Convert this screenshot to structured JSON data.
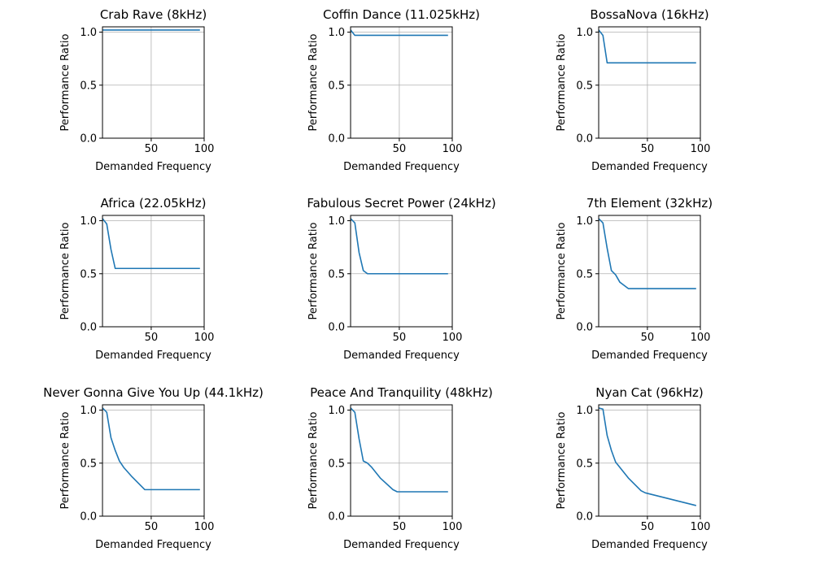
{
  "figure": {
    "line_color": "#1f77b4",
    "grid_color": "#b0b0b0",
    "axis_color": "#000000",
    "background": "#ffffff"
  },
  "chart_data": [
    {
      "type": "line",
      "title": "Crab Rave (8kHz)",
      "xlabel": "Demanded Frequency",
      "ylabel": "Performance Ratio",
      "xlim": [
        4,
        100
      ],
      "ylim": [
        0,
        1.05
      ],
      "xticks": [
        50,
        100
      ],
      "yticks": [
        0.0,
        0.5,
        1.0
      ],
      "grid": true,
      "x": [
        4,
        8,
        12,
        16,
        20,
        24,
        32,
        44,
        48,
        96
      ],
      "y": [
        1.02,
        1.02,
        1.02,
        1.02,
        1.02,
        1.02,
        1.02,
        1.02,
        1.02,
        1.02
      ]
    },
    {
      "type": "line",
      "title": "Coffin Dance (11.025kHz)",
      "xlabel": "Demanded Frequency",
      "ylabel": "Performance Ratio",
      "xlim": [
        4,
        100
      ],
      "ylim": [
        0,
        1.05
      ],
      "xticks": [
        50,
        100
      ],
      "yticks": [
        0.0,
        0.5,
        1.0
      ],
      "grid": true,
      "x": [
        4,
        8,
        12,
        16,
        20,
        24,
        32,
        44,
        48,
        96
      ],
      "y": [
        1.02,
        0.97,
        0.97,
        0.97,
        0.97,
        0.97,
        0.97,
        0.97,
        0.97,
        0.97
      ]
    },
    {
      "type": "line",
      "title": "BossaNova (16kHz)",
      "xlabel": "Demanded Frequency",
      "ylabel": "Performance Ratio",
      "xlim": [
        4,
        100
      ],
      "ylim": [
        0,
        1.05
      ],
      "xticks": [
        50,
        100
      ],
      "yticks": [
        0.0,
        0.5,
        1.0
      ],
      "grid": true,
      "x": [
        4,
        8,
        12,
        16,
        20,
        24,
        32,
        44,
        48,
        96
      ],
      "y": [
        1.02,
        0.97,
        0.71,
        0.71,
        0.71,
        0.71,
        0.71,
        0.71,
        0.71,
        0.71
      ]
    },
    {
      "type": "line",
      "title": "Africa (22.05kHz)",
      "xlabel": "Demanded Frequency",
      "ylabel": "Performance Ratio",
      "xlim": [
        4,
        100
      ],
      "ylim": [
        0,
        1.05
      ],
      "xticks": [
        50,
        100
      ],
      "yticks": [
        0.0,
        0.5,
        1.0
      ],
      "grid": true,
      "x": [
        4,
        8,
        12,
        16,
        20,
        24,
        32,
        44,
        48,
        96
      ],
      "y": [
        1.02,
        0.97,
        0.73,
        0.55,
        0.55,
        0.55,
        0.55,
        0.55,
        0.55,
        0.55
      ]
    },
    {
      "type": "line",
      "title": "Fabulous Secret Power (24kHz)",
      "xlabel": "Demanded Frequency",
      "ylabel": "Performance Ratio",
      "xlim": [
        4,
        100
      ],
      "ylim": [
        0,
        1.05
      ],
      "xticks": [
        50,
        100
      ],
      "yticks": [
        0.0,
        0.5,
        1.0
      ],
      "grid": true,
      "x": [
        4,
        8,
        12,
        16,
        20,
        24,
        32,
        44,
        48,
        96
      ],
      "y": [
        1.02,
        0.98,
        0.7,
        0.53,
        0.5,
        0.5,
        0.5,
        0.5,
        0.5,
        0.5
      ]
    },
    {
      "type": "line",
      "title": "7th Element (32kHz)",
      "xlabel": "Demanded Frequency",
      "ylabel": "Performance Ratio",
      "xlim": [
        4,
        100
      ],
      "ylim": [
        0,
        1.05
      ],
      "xticks": [
        50,
        100
      ],
      "yticks": [
        0.0,
        0.5,
        1.0
      ],
      "grid": true,
      "x": [
        4,
        8,
        12,
        16,
        20,
        24,
        32,
        44,
        48,
        96
      ],
      "y": [
        1.02,
        0.98,
        0.74,
        0.53,
        0.49,
        0.42,
        0.36,
        0.36,
        0.36,
        0.36
      ]
    },
    {
      "type": "line",
      "title": "Never Gonna Give You Up (44.1kHz)",
      "xlabel": "Demanded Frequency",
      "ylabel": "Performance Ratio",
      "xlim": [
        4,
        100
      ],
      "ylim": [
        0,
        1.05
      ],
      "xticks": [
        50,
        100
      ],
      "yticks": [
        0.0,
        0.5,
        1.0
      ],
      "grid": true,
      "x": [
        4,
        8,
        12,
        16,
        20,
        24,
        32,
        44,
        48,
        96
      ],
      "y": [
        1.02,
        0.98,
        0.74,
        0.62,
        0.52,
        0.46,
        0.37,
        0.25,
        0.25,
        0.25
      ]
    },
    {
      "type": "line",
      "title": "Peace And Tranquility (48kHz)",
      "xlabel": "Demanded Frequency",
      "ylabel": "Performance Ratio",
      "xlim": [
        4,
        100
      ],
      "ylim": [
        0,
        1.05
      ],
      "xticks": [
        50,
        100
      ],
      "yticks": [
        0.0,
        0.5,
        1.0
      ],
      "grid": true,
      "x": [
        4,
        8,
        12,
        16,
        20,
        24,
        32,
        44,
        48,
        96
      ],
      "y": [
        1.02,
        0.98,
        0.73,
        0.52,
        0.5,
        0.46,
        0.36,
        0.25,
        0.23,
        0.23
      ]
    },
    {
      "type": "line",
      "title": "Nyan Cat (96kHz)",
      "xlabel": "Demanded Frequency",
      "ylabel": "Performance Ratio",
      "xlim": [
        4,
        100
      ],
      "ylim": [
        0,
        1.05
      ],
      "xticks": [
        50,
        100
      ],
      "yticks": [
        0.0,
        0.5,
        1.0
      ],
      "grid": true,
      "x": [
        4,
        8,
        12,
        16,
        20,
        24,
        32,
        44,
        48,
        96
      ],
      "y": [
        1.02,
        1.01,
        0.76,
        0.62,
        0.51,
        0.46,
        0.36,
        0.24,
        0.22,
        0.1
      ]
    }
  ]
}
